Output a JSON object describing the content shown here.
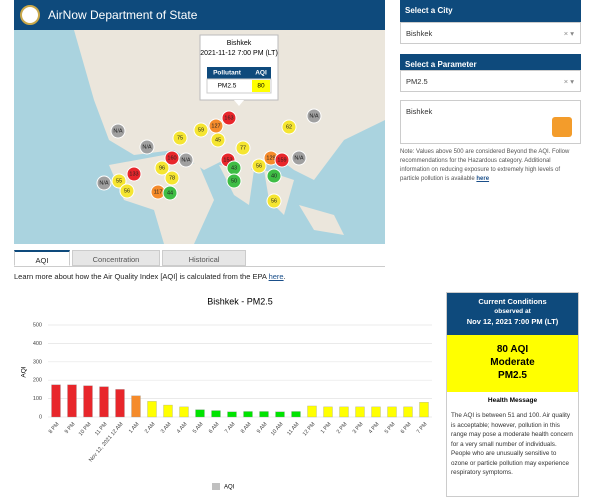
{
  "header": {
    "title": "AirNow Department of State"
  },
  "map": {
    "popup": {
      "city": "Bishkek",
      "time": "2021-11-12 7:00 PM (LT)",
      "col1": "Pollutant",
      "col2": "AQI",
      "pollutant": "PM2.5",
      "aqi": "80",
      "aqi_color": "#ffff00"
    },
    "markers": [
      {
        "label": "N/A",
        "color": "#a0a0a0"
      },
      {
        "label": "N/A",
        "color": "#a0a0a0"
      },
      {
        "label": "75",
        "color": "#f5e531"
      },
      {
        "label": "59",
        "color": "#f5e531"
      },
      {
        "label": "127",
        "color": "#f58b2b"
      },
      {
        "label": "163",
        "color": "#e8262b"
      },
      {
        "label": "45",
        "color": "#f5e531"
      },
      {
        "label": "160",
        "color": "#e8262b"
      },
      {
        "label": "N/A",
        "color": "#a0a0a0"
      },
      {
        "label": "96",
        "color": "#f5e531"
      },
      {
        "label": "78",
        "color": "#f5e531"
      },
      {
        "label": "153",
        "color": "#e8262b"
      },
      {
        "label": "77",
        "color": "#f5e531"
      },
      {
        "label": "56",
        "color": "#f5e531"
      },
      {
        "label": "43",
        "color": "#3ebd45"
      },
      {
        "label": "50",
        "color": "#3ebd45"
      },
      {
        "label": "129",
        "color": "#f58b2b"
      },
      {
        "label": "159",
        "color": "#e8262b"
      },
      {
        "label": "N/A",
        "color": "#a0a0a0"
      },
      {
        "label": "62",
        "color": "#f5e531"
      },
      {
        "label": "N/A",
        "color": "#a0a0a0"
      },
      {
        "label": "40",
        "color": "#3ebd45"
      },
      {
        "label": "56",
        "color": "#f5e531"
      },
      {
        "label": "133",
        "color": "#e8262b"
      },
      {
        "label": "55",
        "color": "#f5e531"
      },
      {
        "label": "56",
        "color": "#f5e531"
      },
      {
        "label": "N/A",
        "color": "#a0a0a0"
      },
      {
        "label": "117",
        "color": "#f58b2b"
      },
      {
        "label": "44",
        "color": "#3ebd45"
      }
    ]
  },
  "sidebar": {
    "city_heading": "Select a City",
    "city": "Bishkek",
    "param_heading": "Select a Parameter",
    "param": "PM2.5",
    "feed_title": "Bishkek",
    "note": "Note: Values above 500 are considered Beyond the AQI. Follow recommendations for the Hazardous category. Additional information on reducing exposure to extremely high levels of particle pollution is available",
    "note_link": "here"
  },
  "tabs": [
    "AQI",
    "Concentration",
    "Historical"
  ],
  "info": {
    "text": "Learn more about how the Air Quality Index [AQI] is calculated from the EPA",
    "link": "here",
    "end": "."
  },
  "chart_data": {
    "type": "bar",
    "title": "Bishkek - PM2.5",
    "y_label": "AQI",
    "categories": [
      "8 PM",
      "9 PM",
      "10 PM",
      "11 PM",
      "Nov 12, 2021 12 AM",
      "1 AM",
      "2 AM",
      "3 AM",
      "4 AM",
      "5 AM",
      "6 AM",
      "7 AM",
      "8 AM",
      "9 AM",
      "10 AM",
      "11 AM",
      "12 PM",
      "1 PM",
      "2 PM",
      "3 PM",
      "4 PM",
      "5 PM",
      "6 PM",
      "7 PM"
    ],
    "series": [
      {
        "name": "AQI",
        "color": "#c0c0c0",
        "values": [
          175,
          175,
          170,
          165,
          150,
          115,
          85,
          65,
          55,
          40,
          35,
          28,
          30,
          30,
          28,
          30,
          60,
          55,
          55,
          55,
          55,
          55,
          55,
          80
        ]
      }
    ],
    "colors": [
      "#e8262b",
      "#e8262b",
      "#e8262b",
      "#e8262b",
      "#e8262b",
      "#f58b2b",
      "#ffff00",
      "#ffff00",
      "#ffff00",
      "#00e400",
      "#00e400",
      "#00e400",
      "#00e400",
      "#00e400",
      "#00e400",
      "#00e400",
      "#ffff00",
      "#ffff00",
      "#ffff00",
      "#ffff00",
      "#ffff00",
      "#ffff00",
      "#ffff00",
      "#ffff00"
    ],
    "ylim": [
      0,
      500
    ],
    "yticks": [
      0,
      100,
      200,
      300,
      400,
      500
    ],
    "grid": true
  },
  "conditions": {
    "title": "Current Conditions",
    "observed": "observed at",
    "time": "Nov 12, 2021 7:00 PM (LT)",
    "aqi": "80 AQI",
    "category": "Moderate",
    "pollutant": "PM2.5",
    "color": "#ffff00",
    "health_heading": "Health Message",
    "health_text": "The AQI is between 51 and 100. Air quality is acceptable; however, pollution in this range may pose a moderate health concern for a very small number of individuals. People who are unusually sensitive to ozone or particle pollution may experience respiratory symptoms."
  }
}
